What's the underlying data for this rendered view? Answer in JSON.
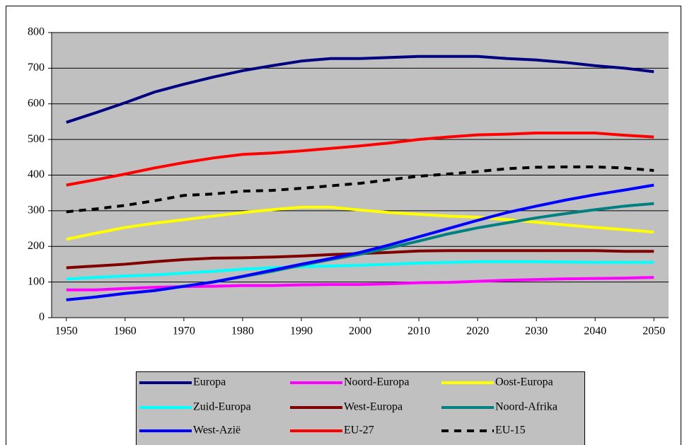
{
  "chart_data": {
    "type": "line",
    "x": [
      1950,
      1955,
      1960,
      1965,
      1970,
      1975,
      1980,
      1985,
      1990,
      1995,
      2000,
      2005,
      2010,
      2015,
      2020,
      2025,
      2030,
      2035,
      2040,
      2045,
      2050
    ],
    "xlim": [
      1947.5,
      2052.5
    ],
    "xticks": [
      1950,
      1960,
      1970,
      1980,
      1990,
      2000,
      2010,
      2020,
      2030,
      2040,
      2050
    ],
    "ylim": [
      0,
      800
    ],
    "yticks": [
      0,
      100,
      200,
      300,
      400,
      500,
      600,
      700,
      800
    ],
    "grid": true,
    "legend": "bottom",
    "series": [
      {
        "name": "Europa",
        "color": "#000080",
        "values": [
          548,
          575,
          603,
          633,
          655,
          675,
          693,
          707,
          720,
          727,
          727,
          730,
          733,
          733,
          733,
          727,
          723,
          716,
          707,
          700,
          690
        ]
      },
      {
        "name": "Noord-Europa",
        "color": "#ff00ff",
        "values": [
          78,
          78,
          82,
          85,
          87,
          88,
          90,
          90,
          92,
          93,
          93,
          95,
          98,
          99,
          102,
          105,
          107,
          109,
          110,
          111,
          113
        ]
      },
      {
        "name": "Oost-Europa",
        "color": "#ffff00",
        "values": [
          220,
          237,
          253,
          265,
          275,
          285,
          295,
          303,
          310,
          310,
          302,
          295,
          290,
          285,
          282,
          275,
          268,
          260,
          253,
          247,
          240
        ]
      },
      {
        "name": "Zuid-Europa",
        "color": "#00ffff",
        "values": [
          108,
          113,
          117,
          120,
          125,
          130,
          136,
          140,
          143,
          145,
          147,
          150,
          153,
          155,
          157,
          157,
          157,
          156,
          155,
          155,
          155
        ]
      },
      {
        "name": "West-Europa",
        "color": "#800000",
        "values": [
          140,
          145,
          150,
          157,
          163,
          167,
          168,
          170,
          173,
          177,
          180,
          183,
          187,
          188,
          188,
          188,
          188,
          188,
          188,
          186,
          186
        ]
      },
      {
        "name": "Noord-Afrika",
        "color": "#008080",
        "values": [
          50,
          58,
          68,
          76,
          88,
          100,
          115,
          130,
          147,
          163,
          178,
          196,
          215,
          235,
          252,
          266,
          280,
          292,
          303,
          313,
          320
        ]
      },
      {
        "name": "West-Azië",
        "color": "#0000ff",
        "values": [
          50,
          58,
          68,
          76,
          88,
          100,
          116,
          133,
          150,
          166,
          183,
          204,
          227,
          250,
          273,
          295,
          313,
          330,
          345,
          358,
          372
        ]
      },
      {
        "name": "EU-27",
        "color": "#ff0000",
        "values": [
          372,
          387,
          403,
          420,
          435,
          448,
          458,
          462,
          468,
          475,
          482,
          490,
          500,
          507,
          513,
          515,
          518,
          518,
          518,
          512,
          507
        ]
      },
      {
        "name": "EU-15",
        "color": "#000000",
        "dashed": true,
        "values": [
          297,
          305,
          315,
          328,
          343,
          347,
          355,
          357,
          363,
          370,
          377,
          387,
          397,
          403,
          410,
          418,
          422,
          423,
          423,
          420,
          413
        ]
      }
    ]
  }
}
